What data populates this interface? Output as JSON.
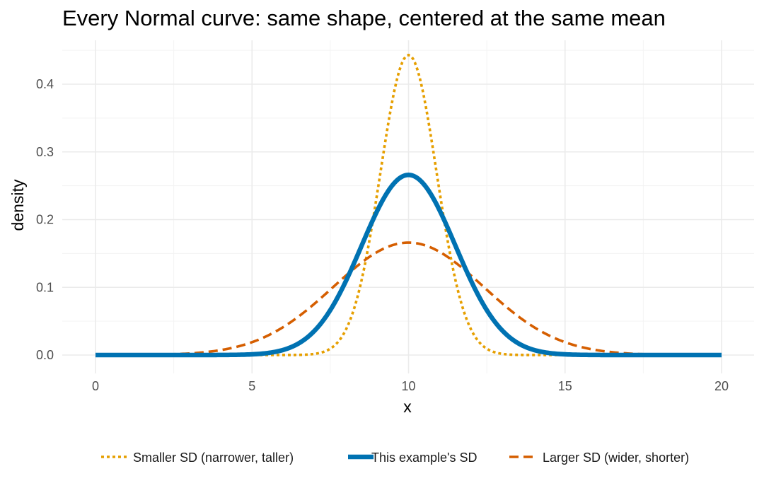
{
  "chart_data": {
    "type": "line",
    "title": "Every Normal curve: same shape, centered at the same mean",
    "xlabel": "x",
    "ylabel": "density",
    "xlim": [
      0,
      20
    ],
    "ylim": [
      0,
      0.45
    ],
    "x_ticks": [
      0,
      5,
      10,
      15,
      20
    ],
    "y_ticks": [
      0.0,
      0.1,
      0.2,
      0.3,
      0.4
    ],
    "x_tick_labels": [
      "0",
      "5",
      "10",
      "15",
      "20"
    ],
    "y_tick_labels": [
      "0.0",
      "0.1",
      "0.2",
      "0.3",
      "0.4"
    ],
    "grid": true,
    "legend_position": "bottom",
    "series": [
      {
        "name": "Smaller SD (narrower, taller)",
        "mean": 10,
        "sd": 0.9,
        "peak_density": 0.443,
        "color": "#E69F00",
        "dash": "dotted"
      },
      {
        "name": "This example's SD",
        "mean": 10,
        "sd": 1.5,
        "peak_density": 0.266,
        "color": "#0072B2",
        "dash": "solid"
      },
      {
        "name": "Larger SD (wider, shorter)",
        "mean": 10,
        "sd": 2.4,
        "peak_density": 0.166,
        "color": "#D55E00",
        "dash": "dashed"
      }
    ]
  }
}
